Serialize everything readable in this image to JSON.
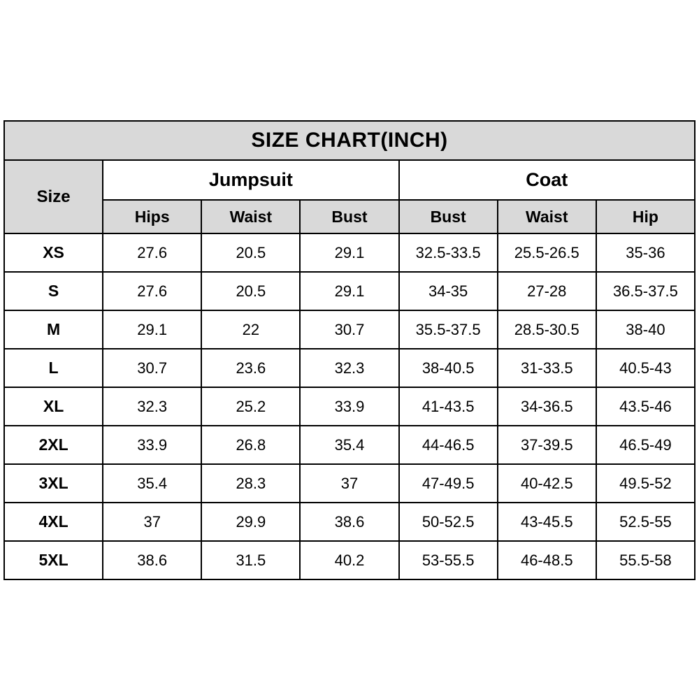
{
  "title": "SIZE CHART(INCH)",
  "table": {
    "size_header": "Size",
    "groups": [
      {
        "label": "Jumpsuit",
        "columns": [
          "Hips",
          "Waist",
          "Bust"
        ]
      },
      {
        "label": "Coat",
        "columns": [
          "Bust",
          "Waist",
          "Hip"
        ]
      }
    ],
    "rows": [
      {
        "size": "XS",
        "values": [
          "27.6",
          "20.5",
          "29.1",
          "32.5-33.5",
          "25.5-26.5",
          "35-36"
        ]
      },
      {
        "size": "S",
        "values": [
          "27.6",
          "20.5",
          "29.1",
          "34-35",
          "27-28",
          "36.5-37.5"
        ]
      },
      {
        "size": "M",
        "values": [
          "29.1",
          "22",
          "30.7",
          "35.5-37.5",
          "28.5-30.5",
          "38-40"
        ]
      },
      {
        "size": "L",
        "values": [
          "30.7",
          "23.6",
          "32.3",
          "38-40.5",
          "31-33.5",
          "40.5-43"
        ]
      },
      {
        "size": "XL",
        "values": [
          "32.3",
          "25.2",
          "33.9",
          "41-43.5",
          "34-36.5",
          "43.5-46"
        ]
      },
      {
        "size": "2XL",
        "values": [
          "33.9",
          "26.8",
          "35.4",
          "44-46.5",
          "37-39.5",
          "46.5-49"
        ]
      },
      {
        "size": "3XL",
        "values": [
          "35.4",
          "28.3",
          "37",
          "47-49.5",
          "40-42.5",
          "49.5-52"
        ]
      },
      {
        "size": "4XL",
        "values": [
          "37",
          "29.9",
          "38.6",
          "50-52.5",
          "43-45.5",
          "52.5-55"
        ]
      },
      {
        "size": "5XL",
        "values": [
          "38.6",
          "31.5",
          "40.2",
          "53-55.5",
          "46-48.5",
          "55.5-58"
        ]
      }
    ]
  },
  "colors": {
    "header_bg": "#d9d9d9",
    "cell_bg": "#ffffff",
    "border": "#000000",
    "text": "#000000"
  },
  "chart_data": {
    "type": "table",
    "title": "SIZE CHART(INCH)",
    "column_groups": [
      {
        "group": "",
        "columns": [
          "Size"
        ]
      },
      {
        "group": "Jumpsuit",
        "columns": [
          "Hips",
          "Waist",
          "Bust"
        ]
      },
      {
        "group": "Coat",
        "columns": [
          "Bust",
          "Waist",
          "Hip"
        ]
      }
    ],
    "rows": [
      [
        "XS",
        "27.6",
        "20.5",
        "29.1",
        "32.5-33.5",
        "25.5-26.5",
        "35-36"
      ],
      [
        "S",
        "27.6",
        "20.5",
        "29.1",
        "34-35",
        "27-28",
        "36.5-37.5"
      ],
      [
        "M",
        "29.1",
        "22",
        "30.7",
        "35.5-37.5",
        "28.5-30.5",
        "38-40"
      ],
      [
        "L",
        "30.7",
        "23.6",
        "32.3",
        "38-40.5",
        "31-33.5",
        "40.5-43"
      ],
      [
        "XL",
        "32.3",
        "25.2",
        "33.9",
        "41-43.5",
        "34-36.5",
        "43.5-46"
      ],
      [
        "2XL",
        "33.9",
        "26.8",
        "35.4",
        "44-46.5",
        "37-39.5",
        "46.5-49"
      ],
      [
        "3XL",
        "35.4",
        "28.3",
        "37",
        "47-49.5",
        "40-42.5",
        "49.5-52"
      ],
      [
        "4XL",
        "37",
        "29.9",
        "38.6",
        "50-52.5",
        "43-45.5",
        "52.5-55"
      ],
      [
        "5XL",
        "38.6",
        "31.5",
        "40.2",
        "53-55.5",
        "46-48.5",
        "55.5-58"
      ]
    ]
  }
}
